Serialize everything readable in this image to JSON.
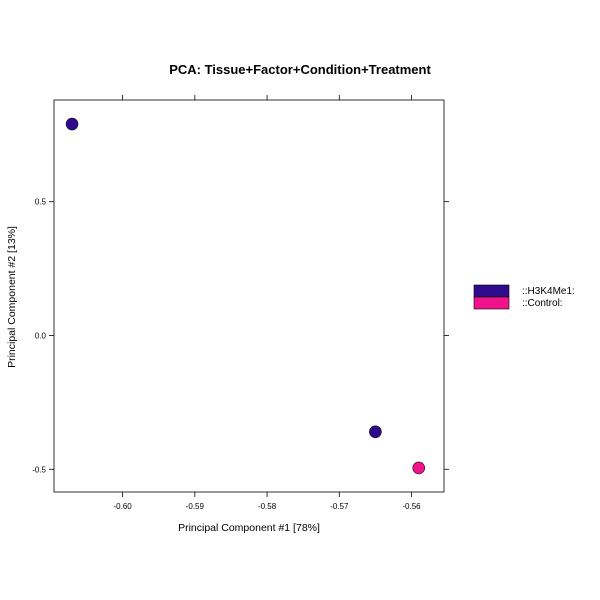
{
  "chart_data": {
    "type": "scatter",
    "title": "PCA: Tissue+Factor+Condition+Treatment",
    "xlabel": "Principal Component #1 [78%]",
    "ylabel": "Principal Component #2 [13%]",
    "xlim": [
      -0.6095,
      -0.5555
    ],
    "ylim": [
      -0.585,
      0.88
    ],
    "xticks": [
      -0.6,
      -0.59,
      -0.58,
      -0.57,
      -0.56
    ],
    "xtick_labels": [
      "-0.60",
      "-0.59",
      "-0.58",
      "-0.57",
      "-0.56"
    ],
    "yticks": [
      0.5,
      0.0,
      -0.5
    ],
    "ytick_labels": [
      "0.5",
      "0.0",
      "-0.5"
    ],
    "grid": false,
    "legend_position": "right",
    "series": [
      {
        "name": "::H3K4Me1:",
        "color": "#2E0A8C",
        "points": [
          {
            "x": -0.607,
            "y": 0.79
          },
          {
            "x": -0.565,
            "y": -0.36
          }
        ]
      },
      {
        "name": "::Control:",
        "color": "#F0138C",
        "points": [
          {
            "x": -0.559,
            "y": -0.495
          }
        ]
      }
    ]
  }
}
